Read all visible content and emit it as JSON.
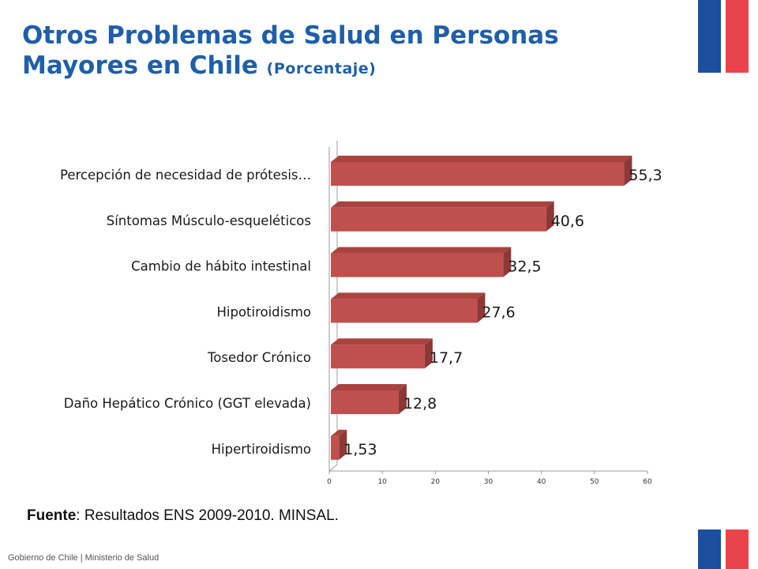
{
  "header": {
    "title": "Otros Problemas de Salud en Personas Mayores en Chile",
    "unit": "(Porcentaje)"
  },
  "source": {
    "label": "Fuente",
    "text": ": Resultados ENS 2009-2010. MINSAL."
  },
  "footer": {
    "text": "Gobierno de Chile | Ministerio de Salud"
  },
  "colors": {
    "bar": "#c0504d",
    "bar_top": "#a94340",
    "bar_side": "#8c3836",
    "title": "#1f5fa8",
    "flag_blue": "#1b4fa0",
    "flag_red": "#e8444a"
  },
  "chart_data": {
    "type": "bar",
    "orientation": "horizontal",
    "style": "3d",
    "categories": [
      "Percepción de necesidad de prótesis…",
      "Síntomas Músculo-esqueléticos",
      "Cambio de hábito intestinal",
      "Hipotiroidismo",
      "Tosedor Crónico",
      "Daño Hepático Crónico (GGT elevada)",
      "Hipertiroidismo"
    ],
    "values": [
      55.3,
      40.6,
      32.5,
      27.6,
      17.7,
      12.8,
      1.53
    ],
    "value_labels": [
      "55,3",
      "40,6",
      "32,5",
      "27,6",
      "17,7",
      "12,8",
      "1,53"
    ],
    "xlim": [
      0,
      60
    ],
    "xticks": [
      0,
      10,
      20,
      30,
      40,
      50,
      60
    ],
    "grid": false,
    "legend": "none"
  }
}
